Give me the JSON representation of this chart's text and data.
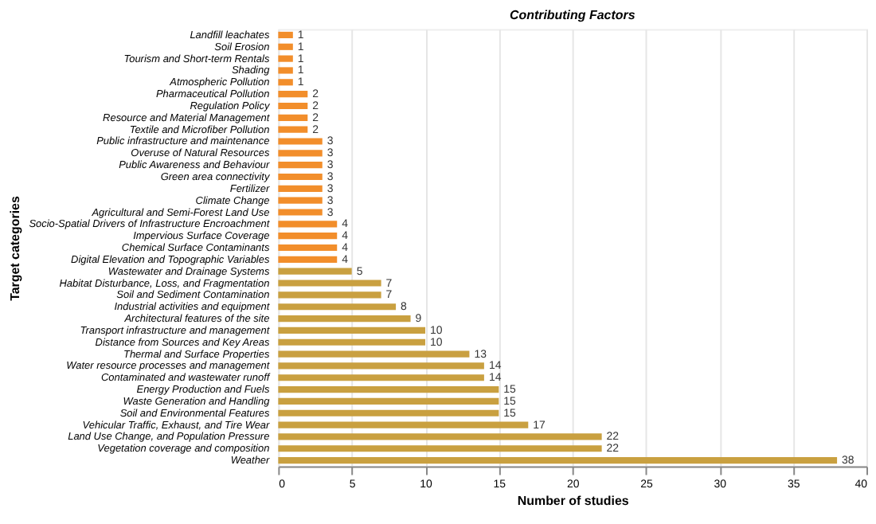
{
  "chart_data": {
    "type": "bar",
    "orientation": "horizontal",
    "title": "Contributing Factors",
    "xlabel": "Number of studies",
    "ylabel": "Target categories",
    "categories": [
      "Landfill leachates",
      "Soil Erosion",
      "Tourism and Short-term Rentals",
      "Shading",
      "Atmospheric Pollution",
      "Pharmaceutical Pollution",
      "Regulation Policy",
      "Resource and Material Management",
      "Textile and Microfiber Pollution",
      "Public infrastructure and maintenance",
      "Overuse of Natural Resources",
      "Public Awareness and Behaviour",
      "Green area connectivity",
      "Fertilizer",
      "Climate Change",
      "Agricultural and Semi-Forest Land Use",
      "Socio-Spatial Drivers of Infrastructure Encroachment",
      "Impervious Surface Coverage",
      "Chemical Surface Contaminants",
      "Digital Elevation and Topographic Variables",
      "Wastewater and Drainage Systems",
      "Habitat Disturbance, Loss, and Fragmentation",
      "Soil and Sediment Contamination",
      "Industrial activities and equipment",
      "Architectural features of the site",
      "Transport infrastructure and management",
      "Distance from Sources and Key Areas",
      "Thermal and Surface Properties",
      "Water resource processes and management",
      "Contaminated and wastewater runoff",
      "Energy Production and Fuels",
      "Waste Generation and Handling",
      "Soil and Environmental Features",
      "Vehicular Traffic, Exhaust, and Tire Wear",
      "Land Use Change, and Population Pressure",
      "Vegetation coverage and composition",
      "Weather"
    ],
    "values": [
      1,
      1,
      1,
      1,
      1,
      2,
      2,
      2,
      2,
      3,
      3,
      3,
      3,
      3,
      3,
      3,
      4,
      4,
      4,
      4,
      5,
      7,
      7,
      8,
      9,
      10,
      10,
      13,
      14,
      14,
      15,
      15,
      15,
      17,
      22,
      22,
      38
    ],
    "colors": [
      "#f28e2b",
      "#f28e2b",
      "#f28e2b",
      "#f28e2b",
      "#f28e2b",
      "#f28e2b",
      "#f28e2b",
      "#f28e2b",
      "#f28e2b",
      "#f28e2b",
      "#f28e2b",
      "#f28e2b",
      "#f28e2b",
      "#f28e2b",
      "#f28e2b",
      "#f28e2b",
      "#f28e2b",
      "#f28e2b",
      "#f28e2b",
      "#f28e2b",
      "#c9a040",
      "#c9a040",
      "#c9a040",
      "#c9a040",
      "#c9a040",
      "#c9a040",
      "#c9a040",
      "#c9a040",
      "#c9a040",
      "#c9a040",
      "#c9a040",
      "#c9a040",
      "#c9a040",
      "#c9a040",
      "#c9a040",
      "#c9a040",
      "#c9a040"
    ],
    "xlim": [
      0,
      40
    ],
    "xticks": [
      0,
      5,
      10,
      15,
      20,
      25,
      30,
      35,
      40
    ],
    "grid": "x",
    "data_labels": true,
    "legend": false
  }
}
